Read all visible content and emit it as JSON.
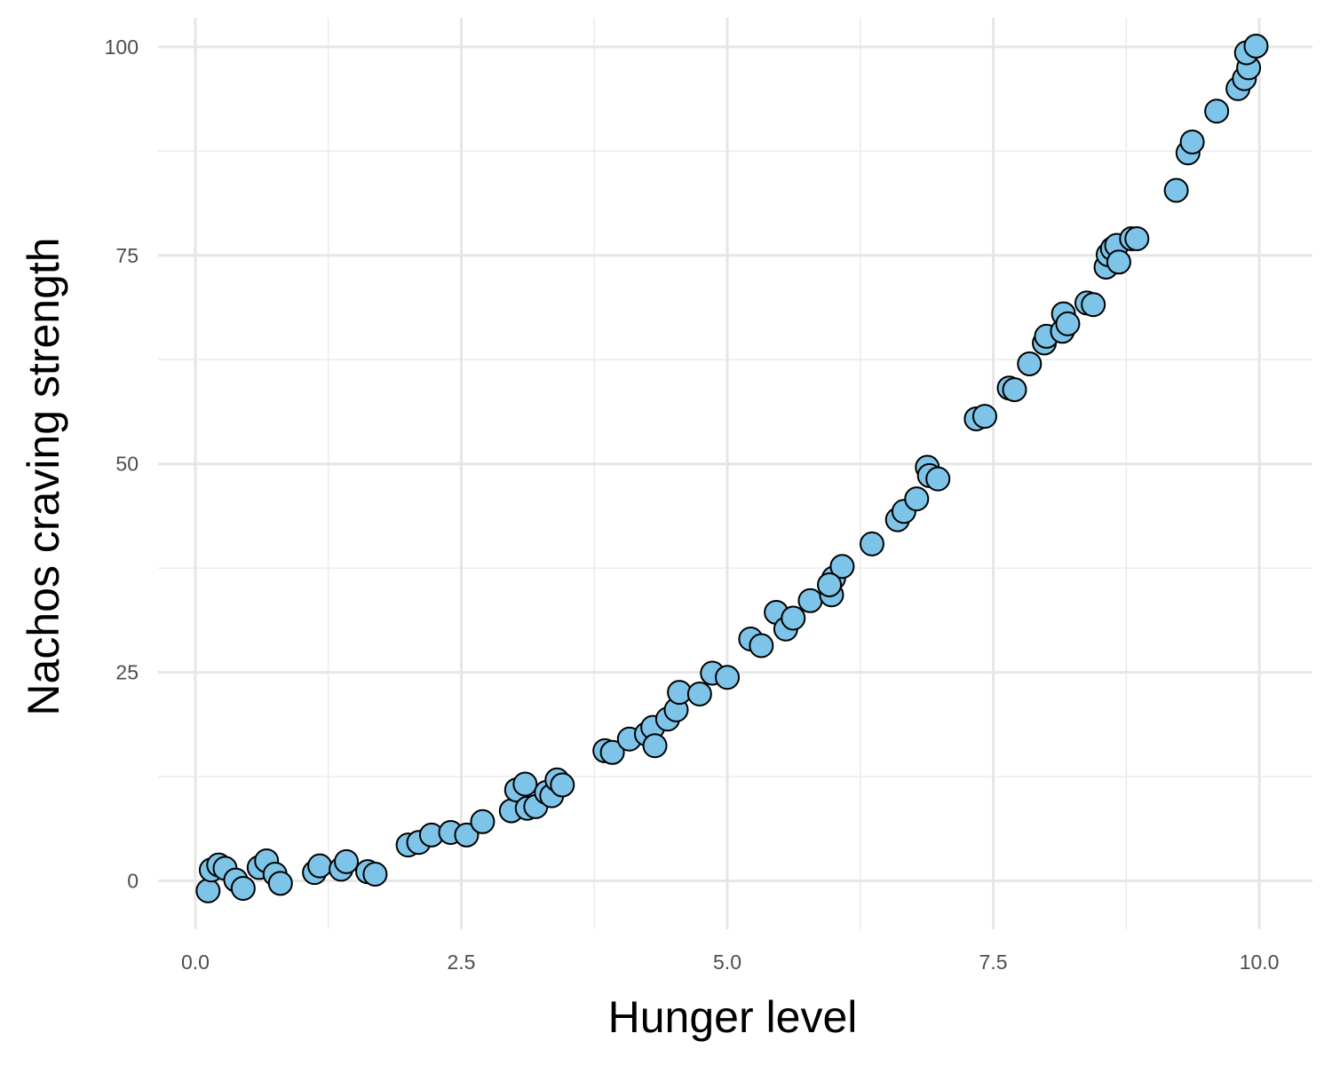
{
  "chart_data": {
    "type": "scatter",
    "xlabel": "Hunger level",
    "ylabel": "Nachos craving strength",
    "xlim": [
      -0.35,
      10.5
    ],
    "ylim": [
      -5.8,
      103.5
    ],
    "x_ticks": [
      0.0,
      2.5,
      5.0,
      7.5,
      10.0
    ],
    "x_tick_labels": [
      "0.0",
      "2.5",
      "5.0",
      "7.5",
      "10.0"
    ],
    "y_ticks": [
      0,
      25,
      50,
      75,
      100
    ],
    "y_tick_labels": [
      "0",
      "25",
      "50",
      "75",
      "100"
    ],
    "grid": true,
    "point_color": "#7DC4E8",
    "point_edge_color": "#000000",
    "points": [
      {
        "x": 0.12,
        "y": -1.2
      },
      {
        "x": 0.15,
        "y": 1.3
      },
      {
        "x": 0.22,
        "y": 1.9
      },
      {
        "x": 0.28,
        "y": 1.5
      },
      {
        "x": 0.38,
        "y": 0.1
      },
      {
        "x": 0.45,
        "y": -0.9
      },
      {
        "x": 0.6,
        "y": 1.6
      },
      {
        "x": 0.67,
        "y": 2.4
      },
      {
        "x": 0.75,
        "y": 0.8
      },
      {
        "x": 0.8,
        "y": -0.3
      },
      {
        "x": 1.12,
        "y": 1.0
      },
      {
        "x": 1.17,
        "y": 1.8
      },
      {
        "x": 1.37,
        "y": 1.4
      },
      {
        "x": 1.42,
        "y": 2.3
      },
      {
        "x": 1.62,
        "y": 1.1
      },
      {
        "x": 1.69,
        "y": 0.8
      },
      {
        "x": 2.0,
        "y": 4.3
      },
      {
        "x": 2.1,
        "y": 4.6
      },
      {
        "x": 2.22,
        "y": 5.5
      },
      {
        "x": 2.4,
        "y": 5.8
      },
      {
        "x": 2.55,
        "y": 5.5
      },
      {
        "x": 2.7,
        "y": 7.1
      },
      {
        "x": 2.97,
        "y": 8.4
      },
      {
        "x": 3.02,
        "y": 10.9
      },
      {
        "x": 3.1,
        "y": 11.6
      },
      {
        "x": 3.12,
        "y": 8.7
      },
      {
        "x": 3.2,
        "y": 8.9
      },
      {
        "x": 3.3,
        "y": 10.6
      },
      {
        "x": 3.35,
        "y": 10.2
      },
      {
        "x": 3.4,
        "y": 12.1
      },
      {
        "x": 3.45,
        "y": 11.5
      },
      {
        "x": 3.85,
        "y": 15.6
      },
      {
        "x": 3.92,
        "y": 15.4
      },
      {
        "x": 4.08,
        "y": 17.0
      },
      {
        "x": 4.24,
        "y": 17.6
      },
      {
        "x": 4.3,
        "y": 18.4
      },
      {
        "x": 4.32,
        "y": 16.2
      },
      {
        "x": 4.44,
        "y": 19.4
      },
      {
        "x": 4.52,
        "y": 20.5
      },
      {
        "x": 4.55,
        "y": 22.6
      },
      {
        "x": 4.74,
        "y": 22.4
      },
      {
        "x": 4.86,
        "y": 24.9
      },
      {
        "x": 5.0,
        "y": 24.4
      },
      {
        "x": 5.22,
        "y": 29.0
      },
      {
        "x": 5.32,
        "y": 28.2
      },
      {
        "x": 5.46,
        "y": 32.2
      },
      {
        "x": 5.55,
        "y": 30.2
      },
      {
        "x": 5.62,
        "y": 31.5
      },
      {
        "x": 5.78,
        "y": 33.6
      },
      {
        "x": 5.98,
        "y": 34.3
      },
      {
        "x": 6.0,
        "y": 36.3
      },
      {
        "x": 6.08,
        "y": 37.7
      },
      {
        "x": 5.96,
        "y": 35.5
      },
      {
        "x": 6.36,
        "y": 40.4
      },
      {
        "x": 6.6,
        "y": 43.3
      },
      {
        "x": 6.66,
        "y": 44.3
      },
      {
        "x": 6.78,
        "y": 45.8
      },
      {
        "x": 6.88,
        "y": 49.6
      },
      {
        "x": 6.9,
        "y": 48.6
      },
      {
        "x": 6.98,
        "y": 48.2
      },
      {
        "x": 7.34,
        "y": 55.4
      },
      {
        "x": 7.42,
        "y": 55.7
      },
      {
        "x": 7.65,
        "y": 59.1
      },
      {
        "x": 7.7,
        "y": 58.9
      },
      {
        "x": 7.84,
        "y": 62.0
      },
      {
        "x": 7.98,
        "y": 64.5
      },
      {
        "x": 8.0,
        "y": 65.3
      },
      {
        "x": 8.15,
        "y": 65.9
      },
      {
        "x": 8.16,
        "y": 68.0
      },
      {
        "x": 8.2,
        "y": 66.8
      },
      {
        "x": 8.38,
        "y": 69.3
      },
      {
        "x": 8.44,
        "y": 69.1
      },
      {
        "x": 8.56,
        "y": 73.6
      },
      {
        "x": 8.58,
        "y": 75.1
      },
      {
        "x": 8.62,
        "y": 75.8
      },
      {
        "x": 8.66,
        "y": 76.2
      },
      {
        "x": 8.68,
        "y": 74.2
      },
      {
        "x": 8.8,
        "y": 77.0
      },
      {
        "x": 8.85,
        "y": 77.0
      },
      {
        "x": 9.22,
        "y": 82.8
      },
      {
        "x": 9.33,
        "y": 87.3
      },
      {
        "x": 9.37,
        "y": 88.6
      },
      {
        "x": 9.6,
        "y": 92.3
      },
      {
        "x": 9.8,
        "y": 95.0
      },
      {
        "x": 9.86,
        "y": 96.2
      },
      {
        "x": 9.9,
        "y": 97.5
      },
      {
        "x": 9.88,
        "y": 99.3
      },
      {
        "x": 9.97,
        "y": 100.1
      }
    ]
  }
}
